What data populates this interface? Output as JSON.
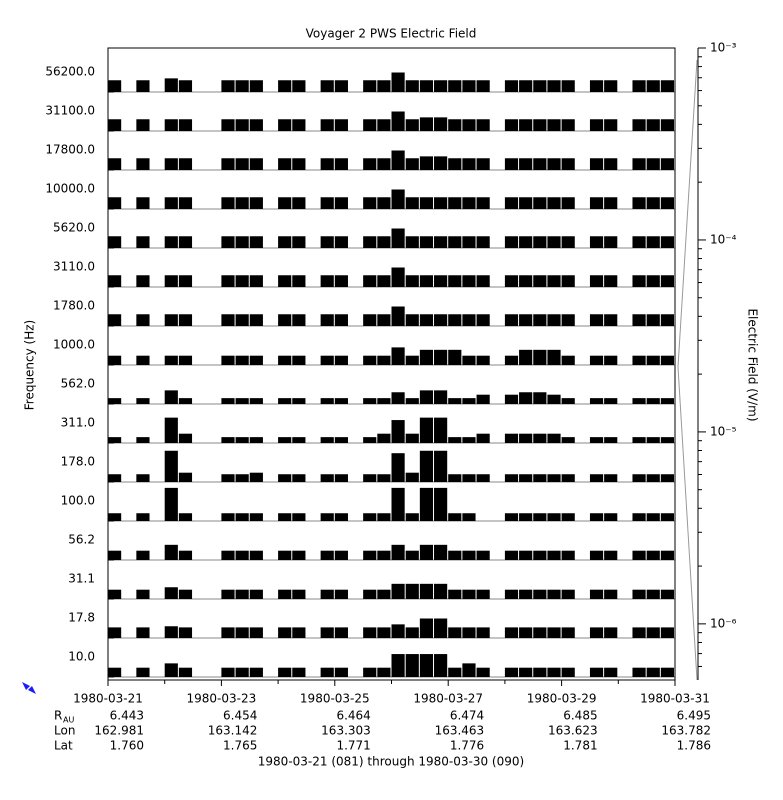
{
  "chart_data": {
    "type": "strip-spectrum",
    "title": "Voyager 2 PWS Electric Field",
    "ylabel": "Frequency (Hz)",
    "colorbar_label": "Electric Field (V/m)",
    "caption": "1980-03-21 (081) through 1980-03-30 (090)",
    "xlim": [
      81,
      91
    ],
    "xticks": [
      {
        "value": 81,
        "label": "1980-03-21"
      },
      {
        "value": 83,
        "label": "1980-03-23"
      },
      {
        "value": 85,
        "label": "1980-03-25"
      },
      {
        "value": 87,
        "label": "1980-03-27"
      },
      {
        "value": 89,
        "label": "1980-03-29"
      },
      {
        "value": 91,
        "label": "1980-03-31"
      }
    ],
    "strip_ylim": [
      1e-07,
      1e-05
    ],
    "log_scale": true,
    "color": "#000000",
    "colorbar_lim": [
      5.1e-07,
      0.001
    ],
    "colorbar_ticks": [
      {
        "value": 0.001,
        "label": "10⁻³"
      },
      {
        "value": 0.0001,
        "label": "10⁻⁴"
      },
      {
        "value": 1e-05,
        "label": "10⁻⁵"
      },
      {
        "value": 1e-06,
        "label": "10⁻⁶"
      }
    ],
    "x": [
      81,
      81.25,
      81.5,
      81.75,
      82,
      82.25,
      82.5,
      82.75,
      83,
      83.25,
      83.5,
      83.75,
      84,
      84.25,
      84.5,
      84.75,
      85,
      85.25,
      85.5,
      85.75,
      86,
      86.25,
      86.5,
      86.75,
      87,
      87.25,
      87.5,
      87.75,
      88,
      88.25,
      88.5,
      88.75,
      89,
      89.25,
      89.5,
      89.75,
      90,
      90.25,
      90.5,
      90.75
    ],
    "channels": [
      {
        "label": "56200.0",
        "values": [
          4e-07,
          null,
          4e-07,
          null,
          5e-07,
          4e-07,
          null,
          null,
          4e-07,
          4e-07,
          4e-07,
          null,
          4e-07,
          4e-07,
          null,
          4e-07,
          4e-07,
          null,
          4e-07,
          4e-07,
          1e-06,
          4e-07,
          4e-07,
          4e-07,
          4e-07,
          4e-07,
          4e-07,
          null,
          4e-07,
          4e-07,
          4e-07,
          4e-07,
          4e-07,
          null,
          4e-07,
          4e-07,
          null,
          4e-07,
          4e-07,
          4e-07
        ]
      },
      {
        "label": "31100.0",
        "values": [
          4e-07,
          null,
          4e-07,
          null,
          4e-07,
          4e-07,
          null,
          null,
          4e-07,
          4e-07,
          4e-07,
          null,
          4e-07,
          4e-07,
          null,
          4e-07,
          4e-07,
          null,
          4e-07,
          4e-07,
          1e-06,
          4e-07,
          5e-07,
          5e-07,
          4e-07,
          4e-07,
          4e-07,
          null,
          4e-07,
          4e-07,
          4e-07,
          4e-07,
          4e-07,
          null,
          4e-07,
          4e-07,
          null,
          4e-07,
          4e-07,
          4e-07
        ]
      },
      {
        "label": "17800.0",
        "values": [
          4e-07,
          null,
          4e-07,
          null,
          4e-07,
          4e-07,
          null,
          null,
          4e-07,
          4e-07,
          4e-07,
          null,
          4e-07,
          4e-07,
          null,
          4e-07,
          4e-07,
          null,
          4e-07,
          4e-07,
          1e-06,
          4e-07,
          5e-07,
          5e-07,
          4e-07,
          4e-07,
          4e-07,
          null,
          4e-07,
          4e-07,
          4e-07,
          4e-07,
          4e-07,
          null,
          4e-07,
          4e-07,
          null,
          4e-07,
          4e-07,
          4e-07
        ]
      },
      {
        "label": "10000.0",
        "values": [
          4e-07,
          null,
          4e-07,
          null,
          4e-07,
          4e-07,
          null,
          null,
          4e-07,
          4e-07,
          4e-07,
          null,
          4e-07,
          4e-07,
          null,
          4e-07,
          4e-07,
          null,
          4e-07,
          4e-07,
          1e-06,
          4e-07,
          4e-07,
          4e-07,
          4e-07,
          4e-07,
          4e-07,
          null,
          4e-07,
          4e-07,
          4e-07,
          4e-07,
          4e-07,
          null,
          4e-07,
          4e-07,
          null,
          4e-07,
          4e-07,
          4e-07
        ]
      },
      {
        "label": "5620.0",
        "values": [
          4e-07,
          null,
          4e-07,
          null,
          4e-07,
          4e-07,
          null,
          null,
          4e-07,
          4e-07,
          4e-07,
          null,
          4e-07,
          4e-07,
          null,
          4e-07,
          4e-07,
          null,
          4e-07,
          4e-07,
          1e-06,
          4e-07,
          4e-07,
          4e-07,
          4e-07,
          4e-07,
          4e-07,
          null,
          4e-07,
          4e-07,
          4e-07,
          4e-07,
          4e-07,
          null,
          4e-07,
          4e-07,
          null,
          4e-07,
          4e-07,
          4e-07
        ]
      },
      {
        "label": "3110.0",
        "values": [
          4e-07,
          null,
          4e-07,
          null,
          4e-07,
          4e-07,
          null,
          null,
          4e-07,
          4e-07,
          4e-07,
          null,
          4e-07,
          4e-07,
          null,
          4e-07,
          4e-07,
          null,
          4e-07,
          4e-07,
          1e-06,
          4e-07,
          4e-07,
          4e-07,
          4e-07,
          4e-07,
          4e-07,
          null,
          4e-07,
          4e-07,
          4e-07,
          4e-07,
          4e-07,
          null,
          4e-07,
          4e-07,
          null,
          4e-07,
          4e-07,
          4e-07
        ]
      },
      {
        "label": "1780.0",
        "values": [
          4e-07,
          null,
          4e-07,
          null,
          4e-07,
          4e-07,
          null,
          null,
          4e-07,
          4e-07,
          4e-07,
          null,
          4e-07,
          4e-07,
          null,
          4e-07,
          4e-07,
          null,
          4e-07,
          4e-07,
          1e-06,
          4e-07,
          4e-07,
          4e-07,
          4e-07,
          4e-07,
          4e-07,
          null,
          4e-07,
          4e-07,
          4e-07,
          4e-07,
          4e-07,
          null,
          4e-07,
          4e-07,
          null,
          4e-07,
          4e-07,
          4e-07
        ]
      },
      {
        "label": "1000.0",
        "values": [
          3e-07,
          null,
          3e-07,
          null,
          3e-07,
          3e-07,
          null,
          null,
          3e-07,
          3e-07,
          3e-07,
          null,
          3e-07,
          3e-07,
          null,
          3e-07,
          3e-07,
          null,
          3e-07,
          3e-07,
          8e-07,
          3e-07,
          6e-07,
          6e-07,
          6e-07,
          3e-07,
          3e-07,
          null,
          3e-07,
          6e-07,
          6e-07,
          6e-07,
          3e-07,
          null,
          3e-07,
          3e-07,
          null,
          3e-07,
          3e-07,
          3e-07
        ]
      },
      {
        "label": "562.0",
        "values": [
          2e-07,
          null,
          2e-07,
          null,
          5e-07,
          2e-07,
          null,
          null,
          2e-07,
          2e-07,
          2e-07,
          null,
          2e-07,
          2e-07,
          null,
          2e-07,
          2e-07,
          null,
          2e-07,
          2e-07,
          4e-07,
          2e-07,
          5e-07,
          5e-07,
          2e-07,
          2e-07,
          3e-07,
          null,
          3e-07,
          4e-07,
          4e-07,
          3e-07,
          2e-07,
          null,
          2e-07,
          2e-07,
          null,
          2e-07,
          2e-07,
          2e-07
        ]
      },
      {
        "label": "311.0",
        "values": [
          2e-07,
          null,
          2e-07,
          null,
          2e-06,
          3e-07,
          null,
          null,
          2e-07,
          2e-07,
          2e-07,
          null,
          2e-07,
          2e-07,
          null,
          2e-07,
          2e-07,
          null,
          2e-07,
          3e-07,
          1.5e-06,
          3e-07,
          2e-06,
          2e-06,
          2e-07,
          2e-07,
          3e-07,
          null,
          3e-07,
          3e-07,
          3e-07,
          3e-07,
          2e-07,
          null,
          2e-07,
          2e-07,
          null,
          2e-07,
          2e-07,
          2e-07
        ]
      },
      {
        "label": "178.0",
        "values": [
          2.5e-07,
          null,
          2.5e-07,
          null,
          4e-06,
          3e-07,
          null,
          null,
          2.5e-07,
          2.5e-07,
          3e-07,
          null,
          2.5e-07,
          2.5e-07,
          null,
          2.5e-07,
          2.5e-07,
          null,
          2.5e-07,
          2.5e-07,
          3e-06,
          3e-07,
          4e-06,
          4e-06,
          2.5e-07,
          2.5e-07,
          2.5e-07,
          null,
          2.5e-07,
          2.5e-07,
          2.5e-07,
          2.5e-07,
          2.5e-07,
          null,
          2.5e-07,
          2.5e-07,
          null,
          2.5e-07,
          2.5e-07,
          2.5e-07
        ]
      },
      {
        "label": "100.0",
        "values": [
          2.5e-07,
          null,
          2.5e-07,
          null,
          5e-06,
          2.5e-07,
          null,
          null,
          2.5e-07,
          2.5e-07,
          2.5e-07,
          null,
          2.5e-07,
          2.5e-07,
          null,
          2.5e-07,
          2.5e-07,
          null,
          2.5e-07,
          2.5e-07,
          5e-06,
          2.5e-07,
          5e-06,
          5e-06,
          2.5e-07,
          2.5e-07,
          null,
          null,
          2.5e-07,
          2.5e-07,
          2.5e-07,
          2.5e-07,
          2.5e-07,
          null,
          2.5e-07,
          2.5e-07,
          null,
          2.5e-07,
          2.5e-07,
          2.5e-07
        ]
      },
      {
        "label": "56.2",
        "values": [
          3e-07,
          null,
          3e-07,
          null,
          6e-07,
          3e-07,
          null,
          null,
          3e-07,
          3e-07,
          3e-07,
          null,
          3e-07,
          3e-07,
          null,
          3e-07,
          3e-07,
          null,
          3e-07,
          3e-07,
          6e-07,
          3e-07,
          6e-07,
          6e-07,
          3e-07,
          3e-07,
          3e-07,
          null,
          3e-07,
          3e-07,
          3e-07,
          3e-07,
          3e-07,
          null,
          3e-07,
          3e-07,
          null,
          3e-07,
          3e-07,
          3e-07
        ]
      },
      {
        "label": "31.1",
        "values": [
          3e-07,
          null,
          3e-07,
          null,
          4e-07,
          3e-07,
          null,
          null,
          3e-07,
          3e-07,
          3e-07,
          null,
          3e-07,
          3e-07,
          null,
          3e-07,
          3e-07,
          null,
          3e-07,
          3e-07,
          6e-07,
          6e-07,
          6e-07,
          6e-07,
          3e-07,
          3e-07,
          3e-07,
          null,
          3e-07,
          3e-07,
          3e-07,
          3e-07,
          3e-07,
          null,
          3e-07,
          3e-07,
          null,
          3e-07,
          3e-07,
          3e-07
        ]
      },
      {
        "label": "17.8",
        "values": [
          3.5e-07,
          null,
          3.5e-07,
          null,
          4e-07,
          3.5e-07,
          null,
          null,
          3.5e-07,
          3.5e-07,
          3.5e-07,
          null,
          3.5e-07,
          3.5e-07,
          null,
          3.5e-07,
          3.5e-07,
          null,
          3.5e-07,
          3.5e-07,
          5e-07,
          3.5e-07,
          1e-06,
          1e-06,
          3.5e-07,
          3.5e-07,
          3.5e-07,
          null,
          3.5e-07,
          3.5e-07,
          3.5e-07,
          3.5e-07,
          3.5e-07,
          null,
          3.5e-07,
          3.5e-07,
          null,
          3.5e-07,
          3.5e-07,
          3.5e-07
        ]
      },
      {
        "label": "10.0",
        "values": [
          3e-07,
          null,
          3e-07,
          null,
          5e-07,
          3e-07,
          null,
          null,
          3e-07,
          3e-07,
          3e-07,
          null,
          3e-07,
          3e-07,
          null,
          3e-07,
          3e-07,
          null,
          3e-07,
          3e-07,
          1.5e-06,
          1.5e-06,
          1.5e-06,
          1.5e-06,
          3e-07,
          5e-07,
          3e-07,
          null,
          3e-07,
          3e-07,
          3e-07,
          3e-07,
          3e-07,
          null,
          3e-07,
          3e-07,
          null,
          3e-07,
          3e-07,
          3e-07
        ]
      }
    ],
    "ephemeris": [
      {
        "label": "R",
        "subscript": "AU",
        "values": [
          "6.443",
          "6.454",
          "6.464",
          "6.474",
          "6.485",
          "6.495"
        ]
      },
      {
        "label": "Lon",
        "values": [
          "162.981",
          "163.142",
          "163.303",
          "163.463",
          "163.623",
          "163.782"
        ]
      },
      {
        "label": "Lat",
        "values": [
          "1.760",
          "1.765",
          "1.771",
          "1.776",
          "1.781",
          "1.786"
        ]
      }
    ]
  }
}
